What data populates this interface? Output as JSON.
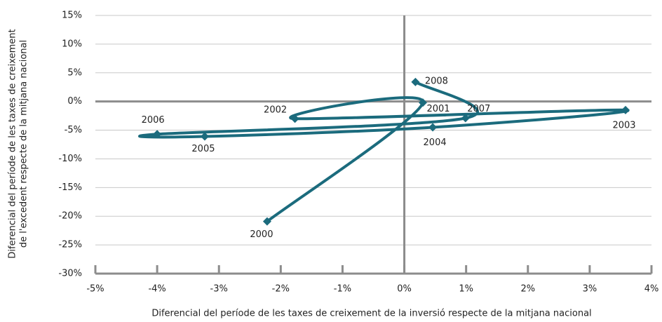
{
  "chart_data": {
    "type": "scatter",
    "x_label": "Diferencial del període de les taxes de creixement de la inversió respecte de la mitjana nacional",
    "y_label": [
      "Diferencial del període de les taxes de creixement",
      "de l'excedent respecte de la mitjana nacional"
    ],
    "labels": [
      "2000",
      "2001",
      "2002",
      "2003",
      "2004",
      "2005",
      "2006",
      "2007",
      "2008"
    ],
    "x": [
      -2.22,
      0.3,
      -1.77,
      3.58,
      0.46,
      -3.23,
      -4.0,
      0.99,
      0.18
    ],
    "values": [
      -20.9,
      -0.2,
      -3.0,
      -1.5,
      -4.5,
      -6.1,
      -5.7,
      -2.9,
      3.4
    ],
    "color": "#1b6b7d",
    "xlim": [
      -5,
      4
    ],
    "xticks": [
      {
        "value": -5,
        "label": "-5%"
      },
      {
        "value": -4,
        "label": "-4%"
      },
      {
        "value": -3,
        "label": "-3%"
      },
      {
        "value": -2,
        "label": "-2%"
      },
      {
        "value": -1,
        "label": "-1%"
      },
      {
        "value": 0,
        "label": "0%"
      },
      {
        "value": 1,
        "label": "1%"
      },
      {
        "value": 2,
        "label": "2%"
      },
      {
        "value": 3,
        "label": "3%"
      },
      {
        "value": 4,
        "label": "4%"
      }
    ],
    "ylim": [
      -30,
      15
    ],
    "yticks": [
      {
        "value": -30,
        "label": "-30%"
      },
      {
        "value": -25,
        "label": "-25%"
      },
      {
        "value": -20,
        "label": "-20%"
      },
      {
        "value": -15,
        "label": "-15%"
      },
      {
        "value": -10,
        "label": "-10%"
      },
      {
        "value": -5,
        "label": "-5%"
      },
      {
        "value": 0,
        "label": "0%"
      },
      {
        "value": 5,
        "label": "5%"
      },
      {
        "value": 10,
        "label": "10%"
      },
      {
        "value": 15,
        "label": "15%"
      }
    ],
    "grid": true
  }
}
